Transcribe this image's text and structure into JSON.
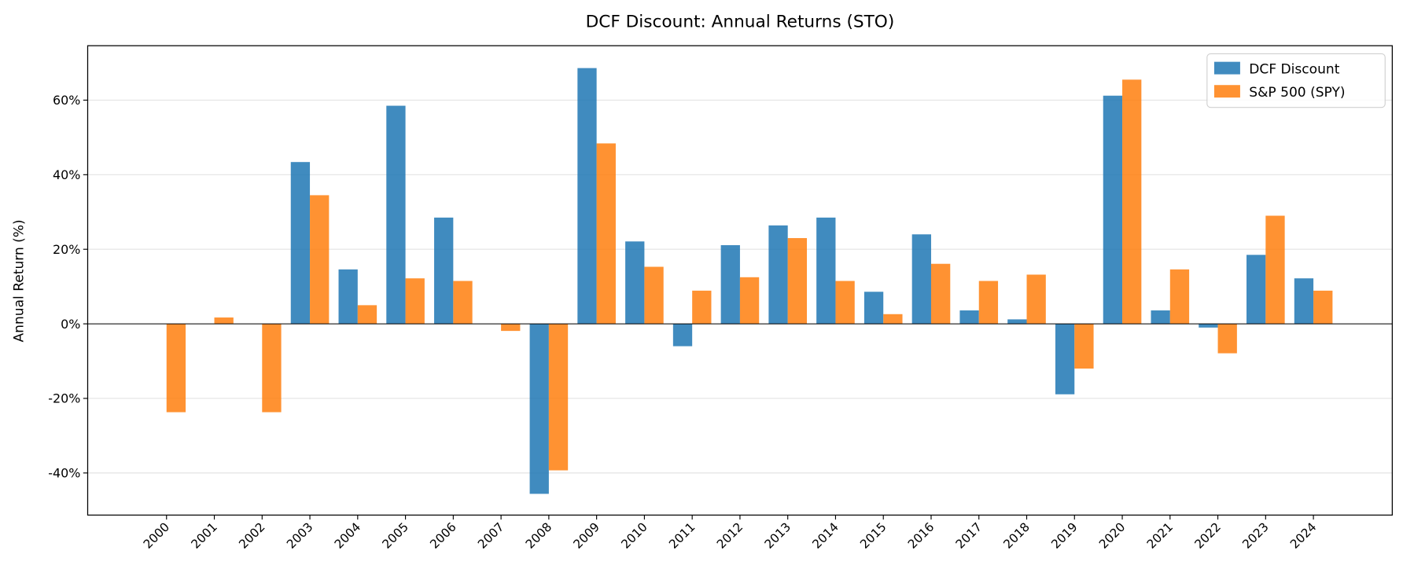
{
  "chart_data": {
    "type": "bar",
    "title": "DCF Discount: Annual Returns (STO)",
    "xlabel": "",
    "ylabel": "Annual Return (%)",
    "categories": [
      "2000",
      "2001",
      "2002",
      "2003",
      "2004",
      "2005",
      "2006",
      "2007",
      "2008",
      "2009",
      "2010",
      "2011",
      "2012",
      "2013",
      "2014",
      "2015",
      "2016",
      "2017",
      "2018",
      "2019",
      "2020",
      "2021",
      "2022",
      "2023",
      "2024"
    ],
    "series": [
      {
        "name": "DCF Discount",
        "color": "#1f77b4",
        "values": [
          0,
          0,
          0,
          43.4,
          14.6,
          58.5,
          28.5,
          0,
          -45.6,
          68.6,
          22.1,
          -6.0,
          21.1,
          26.4,
          28.5,
          8.6,
          24.0,
          3.6,
          1.2,
          -18.9,
          61.2,
          3.6,
          -1.0,
          18.5,
          12.2
        ]
      },
      {
        "name": "S&P 500 (SPY)",
        "color": "#ff7f0e",
        "values": [
          -23.7,
          1.7,
          -23.7,
          34.5,
          5.0,
          12.2,
          11.5,
          -1.9,
          -39.3,
          48.4,
          15.3,
          8.9,
          12.5,
          23.0,
          11.5,
          2.6,
          16.1,
          11.5,
          13.2,
          -12.0,
          65.5,
          14.6,
          -7.9,
          29.0,
          8.9
        ]
      }
    ],
    "yticks": [
      -40,
      -20,
      0,
      20,
      40,
      60
    ],
    "ytick_labels": [
      "-40%",
      "-20%",
      "0%",
      "20%",
      "40%",
      "60%"
    ],
    "ylim": [
      -51.3,
      74.6
    ],
    "grid": "horizontal",
    "zero_line": true,
    "legend_placement": "top-right",
    "bar_alpha": 0.85
  }
}
